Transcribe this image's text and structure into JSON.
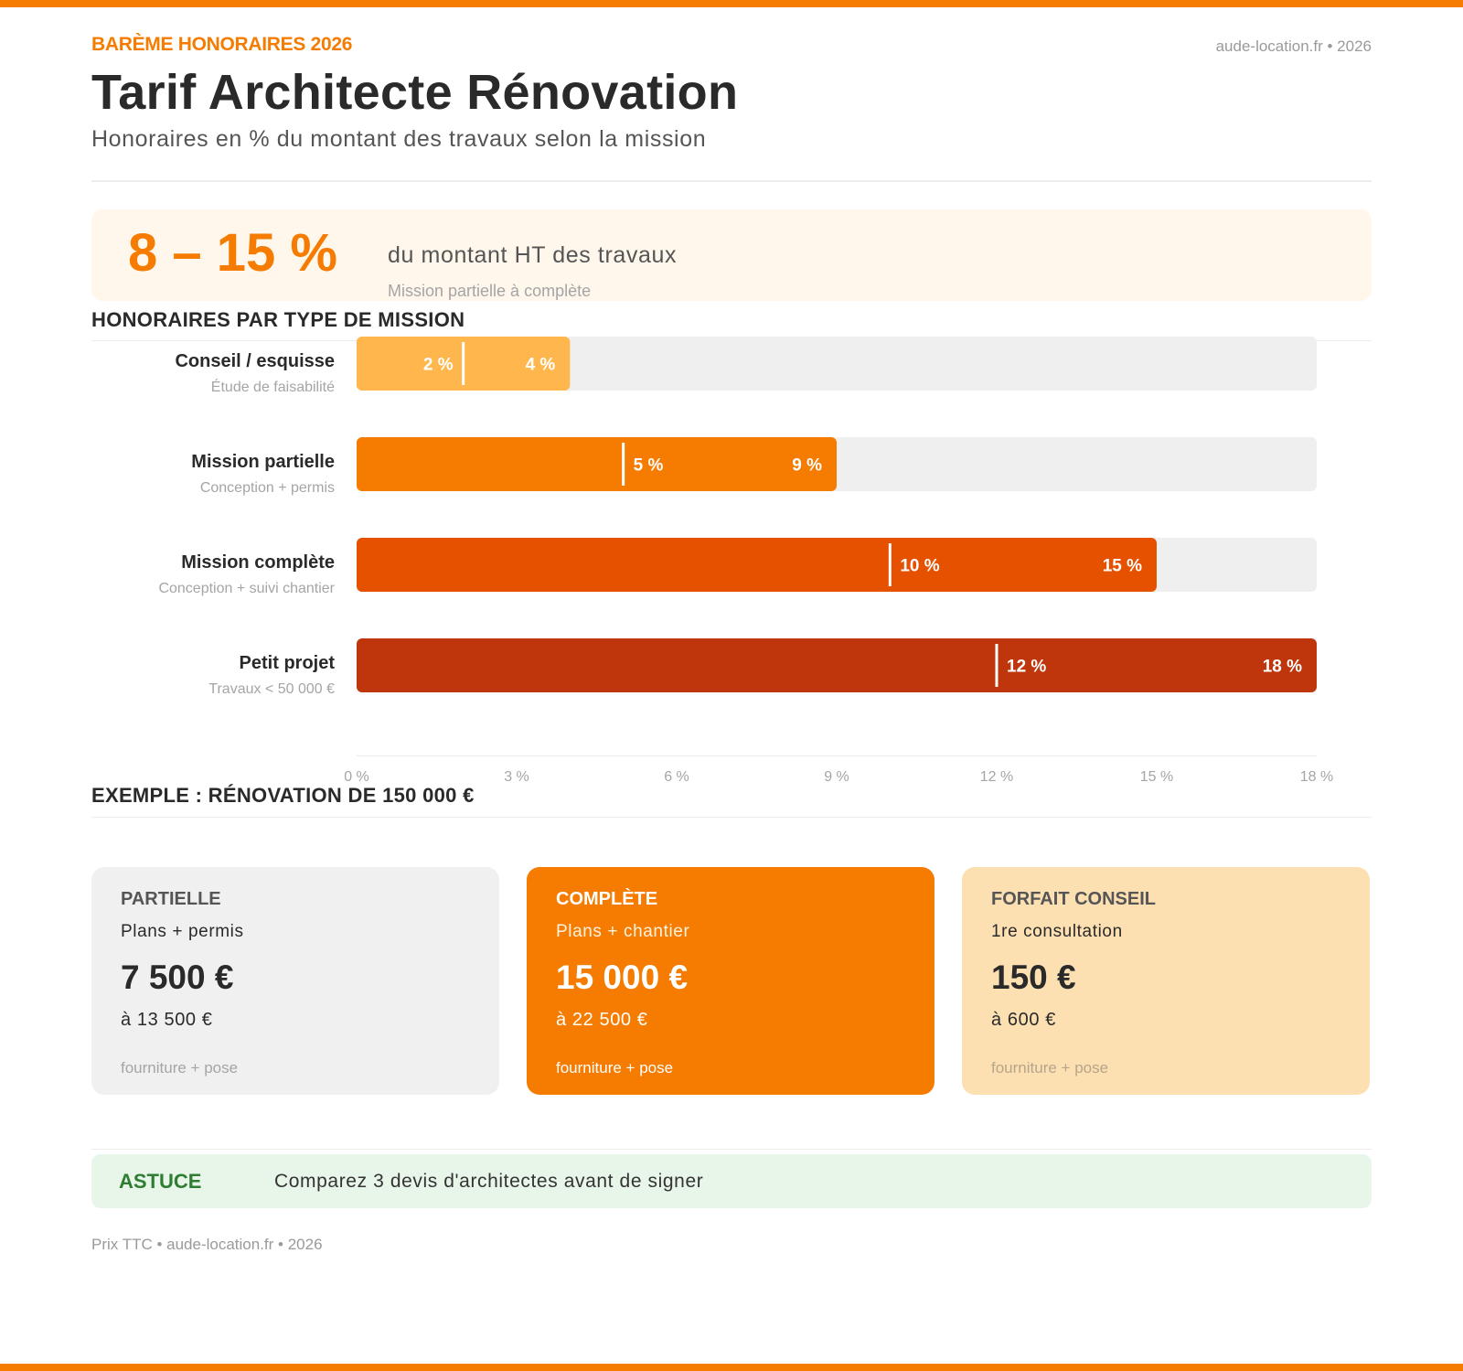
{
  "header": {
    "kicker": "BARÈME HONORAIRES 2026",
    "site": "aude-location.fr • 2026",
    "title": "Tarif Architecte Rénovation",
    "subtitle": "Honoraires en % du montant des travaux selon la mission"
  },
  "hero": {
    "range": "8 – 15 %",
    "text": "du montant HT des travaux",
    "note": "Mission partielle à complète"
  },
  "sections": {
    "chart_title": "HONORAIRES PAR TYPE DE MISSION",
    "example_title": "EXEMPLE : RÉNOVATION DE 150 000 €"
  },
  "chart_data": {
    "type": "bar",
    "orientation": "horizontal",
    "title": "HONORAIRES PAR TYPE DE MISSION",
    "xlim": [
      0,
      18
    ],
    "ticks": [
      0,
      3,
      6,
      9,
      12,
      15,
      18
    ],
    "tick_labels": [
      "0 %",
      "3 %",
      "6 %",
      "9 %",
      "12 %",
      "15 %",
      "18 %"
    ],
    "categories": [
      "Conseil / esquisse",
      "Mission partielle",
      "Mission complète",
      "Petit projet"
    ],
    "descriptions": [
      "Étude de faisabilité",
      "Conception + permis",
      "Conception + suivi chantier",
      "Travaux < 50 000 €"
    ],
    "min_values": [
      2,
      5,
      10,
      12
    ],
    "max_values": [
      4,
      9,
      15,
      18
    ],
    "min_labels": [
      "2 %",
      "5 %",
      "10 %",
      "12 %"
    ],
    "max_labels": [
      "4 %",
      "9 %",
      "15 %",
      "18 %"
    ],
    "colors": [
      "#ffb74d",
      "#f57c00",
      "#e65100",
      "#bf360c"
    ],
    "track_color": "#efefef"
  },
  "cards": [
    {
      "label": "PARTIELLE",
      "sub": "Plans + permis",
      "price": "7 500 €",
      "to": "à 13 500 €",
      "foot": "fourniture + pose"
    },
    {
      "label": "COMPLÈTE",
      "sub": "Plans + chantier",
      "price": "15 000 €",
      "to": "à 22 500 €",
      "foot": "fourniture + pose"
    },
    {
      "label": "FORFAIT CONSEIL",
      "sub": "1re consultation",
      "price": "150 €",
      "to": "à 600 €",
      "foot": "fourniture + pose"
    }
  ],
  "tip": {
    "label": "ASTUCE",
    "text": "Comparez 3 devis d'architectes avant de signer"
  },
  "footer": "Prix TTC • aude-location.fr • 2026",
  "colors": {
    "accent": "#f57c00",
    "card_gray": "#f0f0f0",
    "card_orange": "#f57c00",
    "card_peach": "#fde0b2",
    "tip_bg": "#e8f5e9",
    "tip_label": "#2e7d32"
  }
}
